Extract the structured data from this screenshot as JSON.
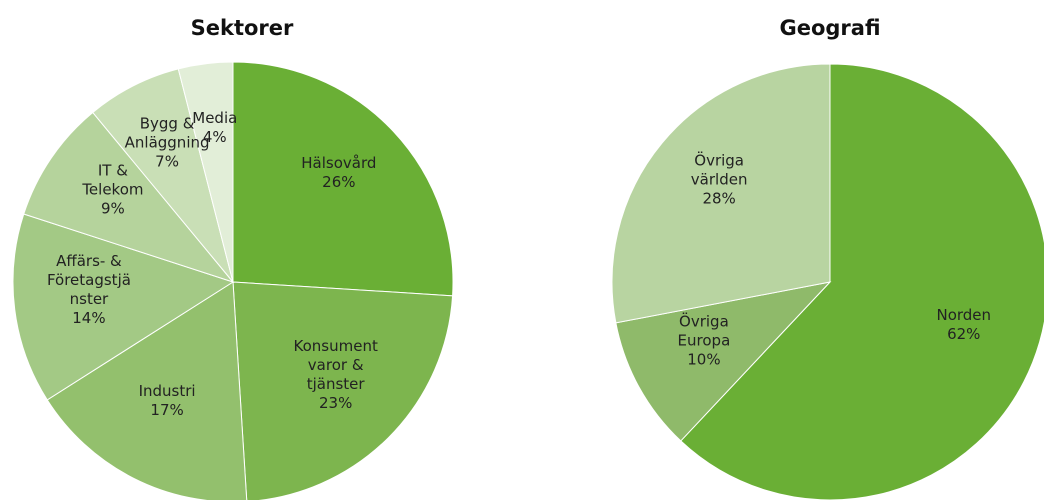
{
  "chart_data": [
    {
      "type": "pie",
      "title": "Sektorer",
      "categories": [
        "Hälsovård",
        "Konsument\nvaror &\ntjänster",
        "Industri",
        "Affärs- &\nFöretagstjä\nnster",
        "IT &\nTelekom",
        "Bygg &\nAnläggning",
        "Media"
      ],
      "values": [
        26,
        23,
        17,
        14,
        9,
        7,
        4
      ],
      "value_labels": [
        "26%",
        "23%",
        "17%",
        "14%",
        "9%",
        "7%",
        "4%"
      ],
      "colors": [
        "#6aaf35",
        "#7db54e",
        "#93c06d",
        "#a3c985",
        "#b5d39c",
        "#c9dfb6",
        "#e2eed8"
      ]
    },
    {
      "type": "pie",
      "title": "Geografi",
      "categories": [
        "Norden",
        "Övriga\nEuropa",
        "Övriga\nvärlden"
      ],
      "values": [
        62,
        10,
        28
      ],
      "value_labels": [
        "62%",
        "10%",
        "28%"
      ],
      "colors": [
        "#6aaf35",
        "#8fba6a",
        "#b8d4a1"
      ]
    }
  ]
}
